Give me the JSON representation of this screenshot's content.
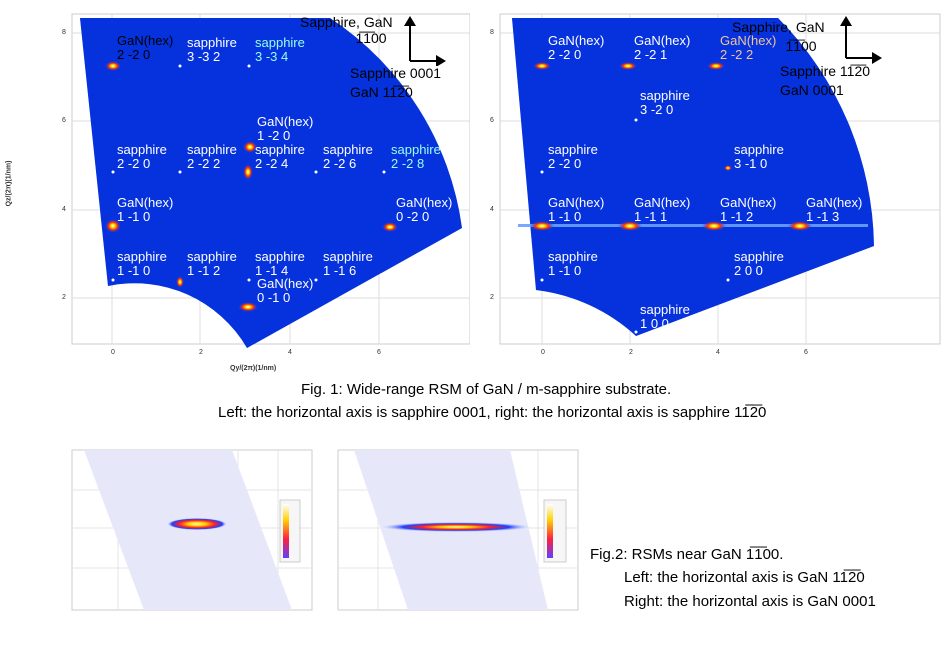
{
  "fig1": {
    "caption_line1": "Fig. 1: Wide-range RSM of GaN / m-sapphire substrate.",
    "caption_line2": "Left: the horizontal axis is sapphire 0001, right: the horizontal axis is sapphire 11̅̅2̅0"
  },
  "fig1_left": {
    "xlabel": "Qy/(2π)(1/nm)",
    "ylabel": "Qz/(2π)(1/nm)",
    "xticks": [
      "0",
      "2",
      "4",
      "6"
    ],
    "yticks": [
      "2",
      "4",
      "6",
      "8"
    ],
    "orient_up": "Sapphire,  GaN",
    "orient_up2": "1̅1̅00",
    "orient_right1": "Sapphire 0001",
    "orient_right2": "GaN 11̅2̅0",
    "labels": [
      {
        "t1": "GaN(hex)",
        "t2": "2 -2 0",
        "c": "#fff"
      },
      {
        "t1": "sapphire",
        "t2": "3 -3 2",
        "c": "#fff"
      },
      {
        "t1": "sapphire",
        "t2": "3 -3 4",
        "c": "#9fe"
      },
      {
        "t1": "GaN(hex)",
        "t2": "1 -2 0",
        "c": "#fff"
      },
      {
        "t1": "sapphire",
        "t2": "2 -2 0",
        "c": "#fff"
      },
      {
        "t1": "sapphire",
        "t2": "2 -2 2",
        "c": "#fff"
      },
      {
        "t1": "sapphire",
        "t2": "2 -2 4",
        "c": "#fff"
      },
      {
        "t1": "sapphire",
        "t2": "2 -2 6",
        "c": "#fff"
      },
      {
        "t1": "sapphire",
        "t2": "2 -2 8",
        "c": "#9fe"
      },
      {
        "t1": "GaN(hex)",
        "t2": "1 -1 0",
        "c": "#fff"
      },
      {
        "t1": "GaN(hex)",
        "t2": "0 -2 0",
        "c": "#fff"
      },
      {
        "t1": "sapphire",
        "t2": "1 -1 0",
        "c": "#fff"
      },
      {
        "t1": "sapphire",
        "t2": "1 -1 2",
        "c": "#fff"
      },
      {
        "t1": "sapphire",
        "t2": "1 -1 4",
        "c": "#fff"
      },
      {
        "t1": "sapphire",
        "t2": "1 -1 6",
        "c": "#fff"
      },
      {
        "t1": "GaN(hex)",
        "t2": "0 -1 0",
        "c": "#fff"
      }
    ]
  },
  "fig1_right": {
    "xticks": [
      "0",
      "2",
      "4",
      "6"
    ],
    "yticks": [
      "2",
      "4",
      "6",
      "8"
    ],
    "orient_up": "Sapphire,  GaN",
    "orient_up2": "1̅1̅00",
    "orient_right1": "Sapphire 11̅2̅0",
    "orient_right2": "GaN 0001",
    "labels": [
      {
        "t1": "GaN(hex)",
        "t2": "2 -2 0",
        "c": "#fff"
      },
      {
        "t1": "GaN(hex)",
        "t2": "2 -2 1",
        "c": "#fff"
      },
      {
        "t1": "GaN(hex)",
        "t2": "2 -2 2",
        "c": "#f2c49a"
      },
      {
        "t1": "sapphire",
        "t2": "3 -2 0",
        "c": "#fff"
      },
      {
        "t1": "sapphire",
        "t2": "2 -2 0",
        "c": "#fff"
      },
      {
        "t1": "sapphire",
        "t2": "3 -1 0",
        "c": "#fff"
      },
      {
        "t1": "GaN(hex)",
        "t2": "1 -1 0",
        "c": "#fff"
      },
      {
        "t1": "GaN(hex)",
        "t2": "1 -1 1",
        "c": "#fff"
      },
      {
        "t1": "GaN(hex)",
        "t2": "1 -1 2",
        "c": "#fff"
      },
      {
        "t1": "GaN(hex)",
        "t2": "1 -1 3",
        "c": "#fff"
      },
      {
        "t1": "sapphire",
        "t2": "1 -1 0",
        "c": "#fff"
      },
      {
        "t1": "sapphire",
        "t2": "2 0 0",
        "c": "#fff"
      },
      {
        "t1": "sapphire",
        "t2": "1 0 0",
        "c": "#fff"
      }
    ]
  },
  "fig2": {
    "caption_line1": "Fig.2: RSMs near GaN 1̅1̅00.",
    "caption_line2": "Left: the horizontal axis is GaN 11̅2̅0",
    "caption_line3": "Right: the horizontal axis is GaN 0001"
  }
}
